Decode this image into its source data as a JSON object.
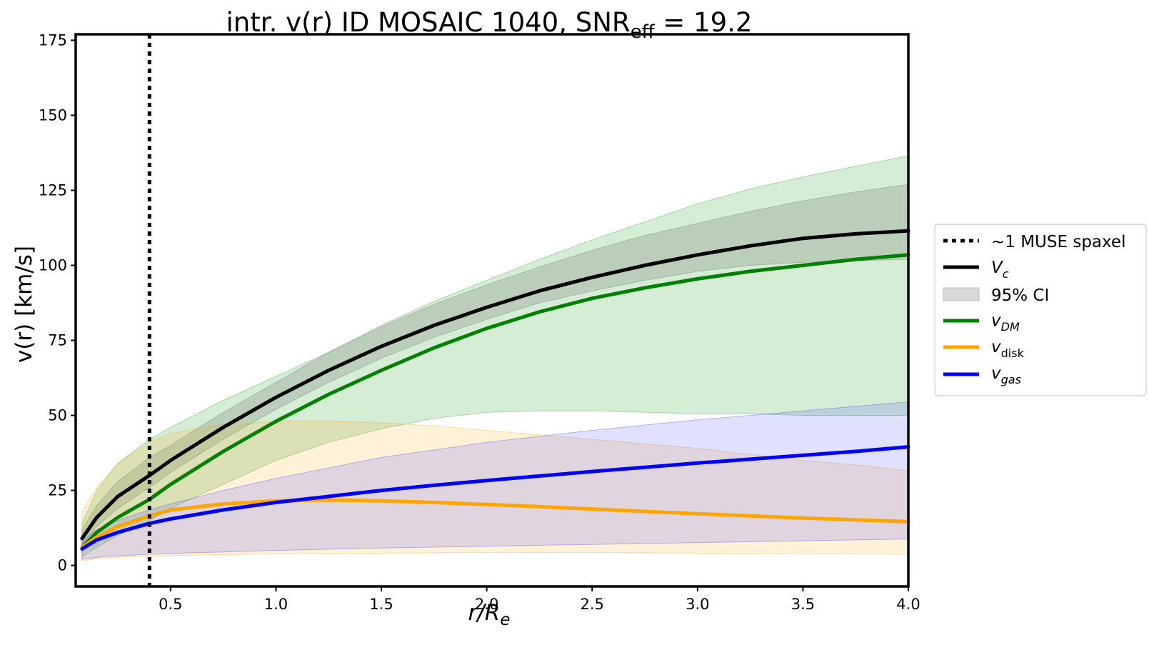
{
  "chart_data": {
    "type": "line",
    "title": "intr. v(r) ID MOSAIC 1040, SNR",
    "title_sub": "eff",
    "title_suffix": " = 19.2",
    "xlabel": "r/R",
    "xlabel_sub": "e",
    "ylabel": "v(r) [km/s]",
    "xlim": [
      0.05,
      4.0
    ],
    "ylim": [
      -7,
      177
    ],
    "xticks": [
      0.5,
      1.0,
      1.5,
      2.0,
      2.5,
      3.0,
      3.5,
      4.0
    ],
    "xtick_labels": [
      "0.5",
      "1.0",
      "1.5",
      "2.0",
      "2.5",
      "3.0",
      "3.5",
      "4.0"
    ],
    "yticks": [
      0,
      25,
      50,
      75,
      100,
      125,
      150,
      175
    ],
    "ytick_labels": [
      "0",
      "25",
      "50",
      "75",
      "100",
      "125",
      "150",
      "175"
    ],
    "grid": false,
    "legend_position": "outside-right",
    "vline": {
      "x": 0.4,
      "style": "dotted",
      "color": "#000000",
      "label": "~1 MUSE spaxel"
    },
    "ci_label": "95% CI",
    "x": [
      0.08,
      0.15,
      0.25,
      0.4,
      0.5,
      0.75,
      1.0,
      1.25,
      1.5,
      1.75,
      2.0,
      2.25,
      2.5,
      2.75,
      3.0,
      3.25,
      3.5,
      3.75,
      4.0
    ],
    "series": [
      {
        "name": "V",
        "name_sub": "c",
        "italic": true,
        "color": "#000000",
        "band_color": "#7a6a7a",
        "band_opacity": 0.25,
        "values": [
          9,
          16,
          23,
          30,
          35,
          46,
          56,
          65,
          73,
          80,
          86,
          91.5,
          96,
          100,
          103.5,
          106.5,
          109,
          110.5,
          111.5
        ],
        "lower": [
          7,
          13,
          19,
          26,
          31,
          42,
          52,
          61,
          69,
          76,
          82,
          87.5,
          91.5,
          95,
          98,
          100,
          101,
          101.5,
          102
        ],
        "upper": [
          12,
          20,
          28,
          36,
          40,
          51,
          61,
          71,
          79.5,
          87,
          93.5,
          99.5,
          105,
          110,
          114,
          118,
          121.5,
          124.5,
          127
        ]
      },
      {
        "name": "v",
        "name_sub": "DM",
        "italic": true,
        "color": "#008000",
        "band_color": "#2ca02c",
        "band_opacity": 0.2,
        "values": [
          6,
          11,
          16,
          22,
          27,
          38,
          48,
          57,
          65,
          72.5,
          79,
          84.5,
          89,
          92.5,
          95.5,
          98,
          100,
          102,
          103.5
        ],
        "lower": [
          3,
          6,
          10,
          15,
          19,
          27,
          35,
          41,
          45.5,
          49,
          51,
          51.5,
          51.5,
          51,
          50.5,
          50.5,
          50,
          50,
          50
        ],
        "upper": [
          14,
          25,
          34,
          42,
          46,
          55,
          63,
          71,
          80,
          88,
          95,
          102,
          108.5,
          114.5,
          120.5,
          125.5,
          129.5,
          133,
          136.5
        ]
      },
      {
        "name": "v",
        "name_sub": "disk",
        "italic": true,
        "color": "#ffa500",
        "band_color": "#ffa500",
        "band_opacity": 0.15,
        "values": [
          6,
          9.5,
          13,
          16.5,
          18.5,
          20.5,
          21.5,
          21.8,
          21.5,
          21,
          20.3,
          19.6,
          18.8,
          18,
          17.2,
          16.5,
          15.8,
          15.2,
          14.6
        ],
        "lower": [
          1.5,
          2.2,
          2.7,
          3.1,
          3.3,
          3.6,
          3.8,
          4.0,
          4.1,
          4.2,
          4.3,
          4.3,
          4.3,
          4.2,
          4.1,
          4.0,
          3.9,
          3.8,
          3.7
        ],
        "upper": [
          18,
          26,
          34,
          41,
          44,
          47,
          48,
          48,
          47.5,
          46.5,
          45,
          43.5,
          42,
          40.5,
          39,
          37,
          35,
          33.5,
          31.5
        ]
      },
      {
        "name": "v",
        "name_sub": "gas",
        "italic": true,
        "color": "#0000ff",
        "band_color": "#4040ff",
        "band_opacity": 0.16,
        "values": [
          5.5,
          8.5,
          11,
          14,
          15.5,
          18.5,
          21,
          23,
          25,
          26.7,
          28.3,
          29.8,
          31.3,
          32.7,
          34.1,
          35.4,
          36.7,
          38,
          39.5
        ],
        "lower": [
          2,
          2.7,
          3.2,
          3.7,
          4.0,
          4.5,
          5.0,
          5.4,
          5.8,
          6.1,
          6.4,
          6.7,
          7.0,
          7.3,
          7.6,
          7.9,
          8.2,
          8.5,
          8.8
        ],
        "upper": [
          8,
          12,
          15,
          18.5,
          20.5,
          25,
          29,
          32.5,
          36,
          38.5,
          41,
          43,
          45,
          46.8,
          48.5,
          50,
          51.5,
          53,
          54.5
        ]
      }
    ]
  }
}
